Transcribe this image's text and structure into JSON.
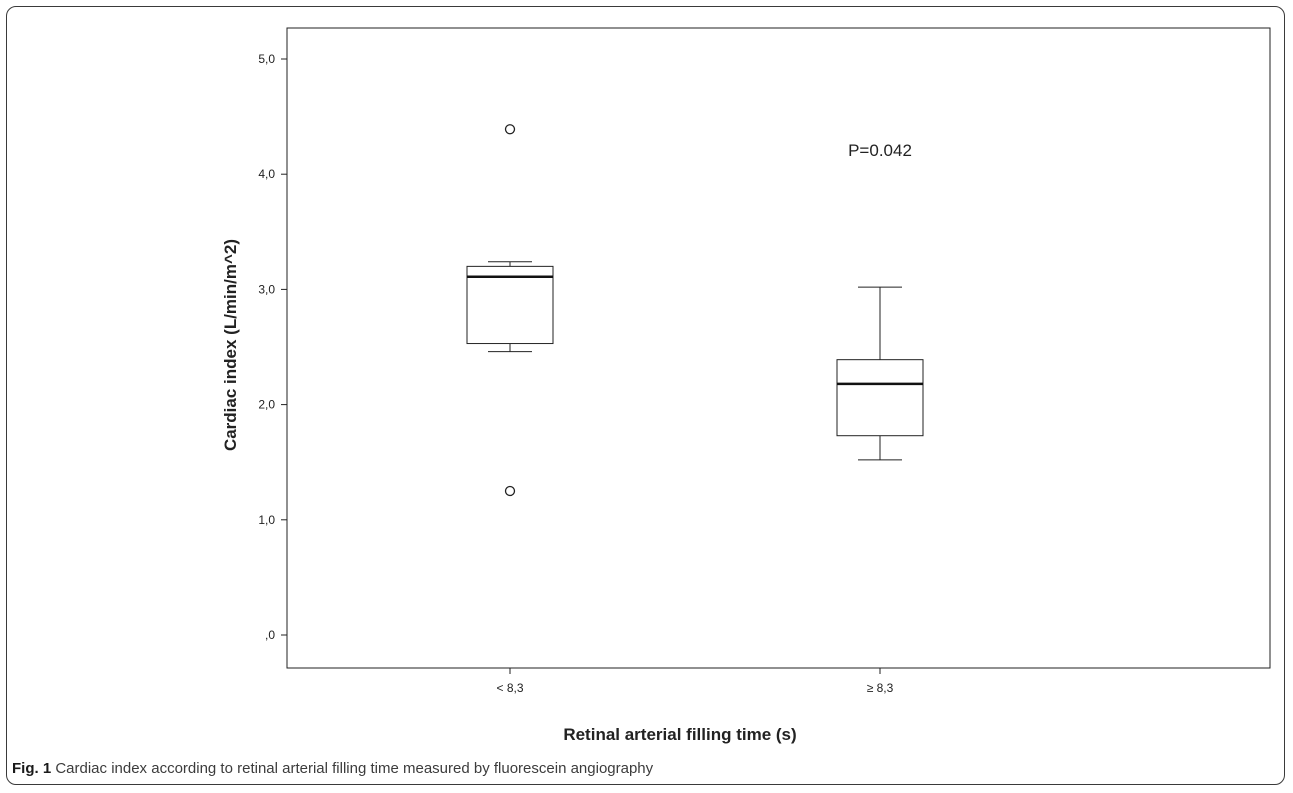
{
  "chart_data": {
    "type": "boxplot",
    "xlabel": "Retinal arterial filling time (s)",
    "ylabel": "Cardiac index (L/min/m^2)",
    "ylim": [
      0,
      5
    ],
    "yticks": [
      ",0",
      "1,0",
      "2,0",
      "3,0",
      "4,0",
      "5,0"
    ],
    "ytick_values": [
      0,
      1,
      2,
      3,
      4,
      5
    ],
    "categories": [
      "< 8,3",
      "≥ 8,3"
    ],
    "boxes": [
      {
        "category": "< 8,3",
        "whisker_low": 2.46,
        "q1": 2.53,
        "median": 3.11,
        "q3": 3.2,
        "whisker_high": 3.24,
        "outliers": [
          4.39,
          1.25
        ]
      },
      {
        "category": "≥ 8,3",
        "whisker_low": 1.52,
        "q1": 1.73,
        "median": 2.18,
        "q3": 2.39,
        "whisker_high": 3.02,
        "outliers": []
      }
    ],
    "annotation": "P=0.042",
    "grid": false
  },
  "caption": {
    "label": "Fig. 1",
    "text": " Cardiac index according to retinal arterial filling time measured by fluorescein angiography"
  }
}
